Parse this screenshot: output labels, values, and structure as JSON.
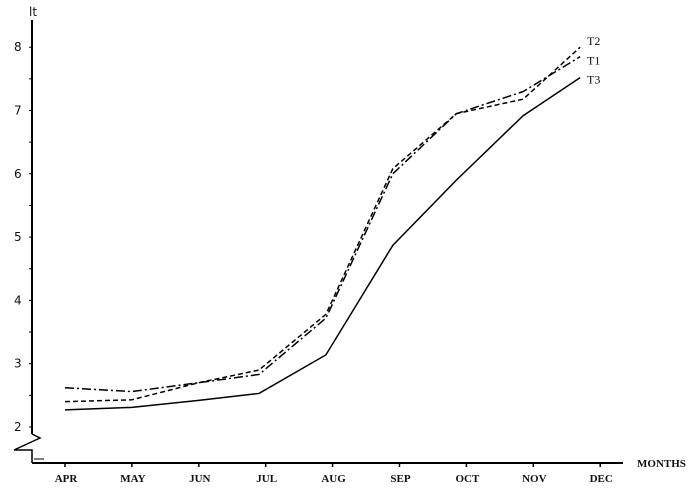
{
  "chart_data": {
    "type": "line",
    "title": "",
    "ylabel": "lt",
    "xlabel": "MONTHS",
    "ylim": [
      2,
      8
    ],
    "yticks": [
      2,
      3,
      4,
      5,
      6,
      7,
      8
    ],
    "categories": [
      "APR",
      "MAY",
      "JUN",
      "JUL",
      "AUG",
      "SEP",
      "OCT",
      "NOV",
      "DEC"
    ],
    "x": [
      0,
      1,
      2,
      2.9,
      3.9,
      4.9,
      5.85,
      6.85,
      7.7
    ],
    "series": [
      {
        "name": "T1",
        "style": "dash-dot",
        "values": [
          2.62,
          2.56,
          2.7,
          2.83,
          3.72,
          6.0,
          6.95,
          7.3,
          7.85
        ]
      },
      {
        "name": "T2",
        "style": "dashed",
        "values": [
          2.4,
          2.43,
          2.7,
          2.9,
          3.78,
          6.08,
          6.95,
          7.18,
          8.0
        ]
      },
      {
        "name": "T3",
        "style": "solid",
        "values": [
          2.27,
          2.31,
          2.42,
          2.53,
          3.14,
          4.87,
          5.9,
          6.92,
          7.52
        ]
      }
    ],
    "grid": false,
    "legend": "line-end labels"
  }
}
